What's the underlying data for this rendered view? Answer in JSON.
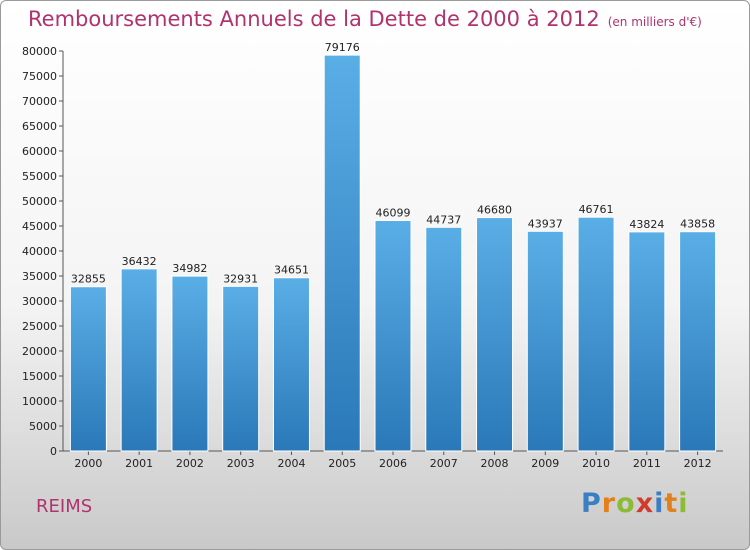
{
  "page": {
    "title": "Remboursements Annuels de la Dette de 2000 à 2012",
    "subtitle": "(en milliers d'€)",
    "city": "REIMS",
    "logo": "Proxiti"
  },
  "colors": {
    "bar_light": "#5aaee6",
    "bar_dark": "#2a78b8",
    "accent": "#b0336e"
  },
  "chart_data": {
    "type": "bar",
    "categories": [
      "2000",
      "2001",
      "2002",
      "2003",
      "2004",
      "2005",
      "2006",
      "2007",
      "2008",
      "2009",
      "2010",
      "2011",
      "2012"
    ],
    "values": [
      32855,
      36432,
      34982,
      32931,
      34651,
      79176,
      46099,
      44737,
      46680,
      43937,
      46761,
      43824,
      43858
    ],
    "yticks": [
      0,
      5000,
      10000,
      15000,
      20000,
      25000,
      30000,
      35000,
      40000,
      45000,
      50000,
      55000,
      60000,
      65000,
      70000,
      75000,
      80000
    ],
    "ylim": [
      0,
      80000
    ],
    "grid": false,
    "legend": "none"
  }
}
